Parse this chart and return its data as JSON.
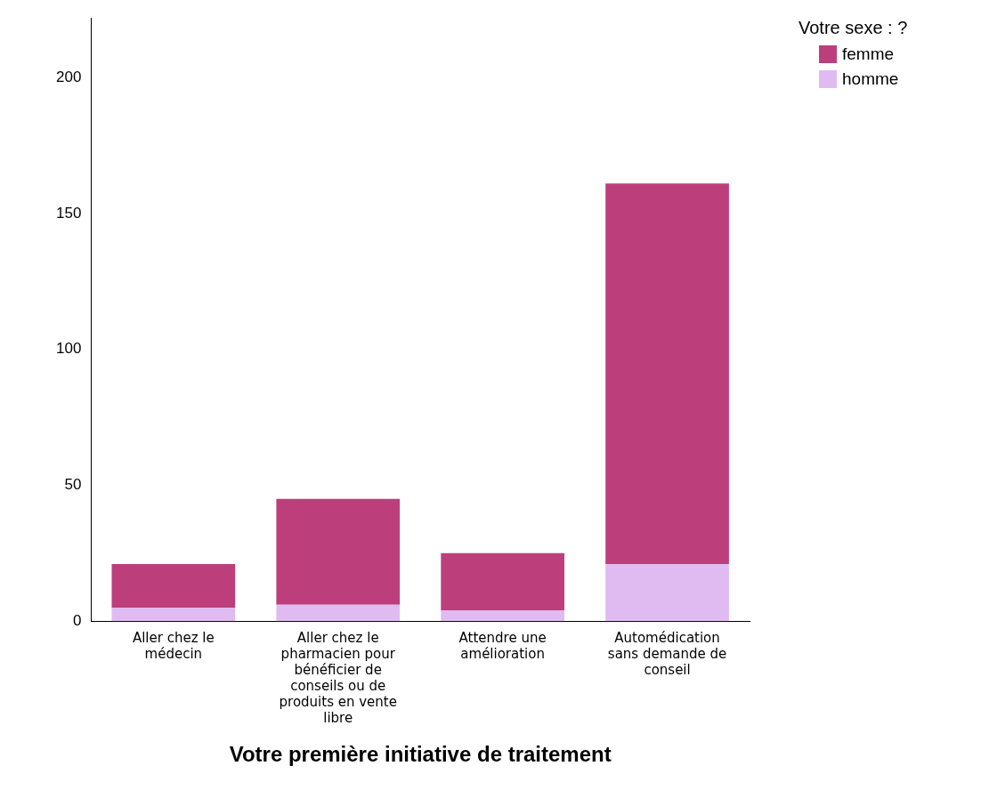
{
  "chart_data": {
    "type": "bar",
    "stacked": true,
    "xlabel": "Votre première initiative de traitement",
    "legend_title": "Votre sexe : ?",
    "legend": "top right",
    "grid": false,
    "categories": [
      "Aller chez le médecin",
      "Aller chez le pharmacien pour bénéficier de conseils ou de produits en vente libre",
      "Attendre une amélioration",
      "Automédication sans demande de conseil"
    ],
    "series": [
      {
        "name": "homme",
        "color": "#e0bbf2",
        "values": [
          5,
          6,
          4,
          21
        ]
      },
      {
        "name": "femme",
        "color": "#bc3f7c",
        "values": [
          16,
          39,
          21,
          140
        ]
      }
    ],
    "ylim": [
      0,
      222
    ],
    "yticks": [
      0,
      50,
      100,
      150,
      200
    ]
  }
}
